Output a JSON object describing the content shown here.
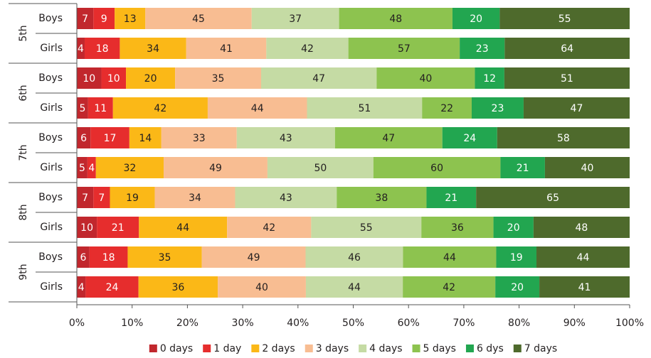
{
  "chart_data": {
    "type": "bar",
    "orientation": "horizontal",
    "stacked": true,
    "normalized": true,
    "groups": [
      "5th",
      "6th",
      "7th",
      "8th",
      "9th"
    ],
    "categories": [
      "Boys",
      "Girls",
      "Boys",
      "Girls",
      "Boys",
      "Girls",
      "Boys",
      "Girls",
      "Boys",
      "Girls"
    ],
    "series": [
      {
        "name": "0 days",
        "color": "#c1272d",
        "values": [
          7,
          4,
          10,
          5,
          6,
          5,
          7,
          10,
          6,
          4
        ]
      },
      {
        "name": "1 day",
        "color": "#e62d2d",
        "values": [
          9,
          18,
          10,
          11,
          17,
          4,
          7,
          21,
          18,
          24
        ]
      },
      {
        "name": "2 days",
        "color": "#fbb817",
        "values": [
          13,
          34,
          20,
          42,
          14,
          32,
          19,
          44,
          35,
          36
        ]
      },
      {
        "name": "3 days",
        "color": "#f8bd92",
        "values": [
          45,
          41,
          35,
          44,
          33,
          49,
          34,
          42,
          49,
          40
        ]
      },
      {
        "name": "4 days",
        "color": "#c5dba4",
        "values": [
          37,
          42,
          47,
          51,
          43,
          50,
          43,
          55,
          46,
          44
        ]
      },
      {
        "name": "5 days",
        "color": "#8dc34f",
        "values": [
          48,
          57,
          40,
          22,
          47,
          60,
          38,
          36,
          44,
          42
        ]
      },
      {
        "name": "6 dys",
        "color": "#22a650",
        "values": [
          20,
          23,
          12,
          23,
          24,
          21,
          21,
          20,
          19,
          20
        ]
      },
      {
        "name": "7 days",
        "color": "#4e6a2c",
        "values": [
          55,
          64,
          51,
          47,
          58,
          40,
          65,
          48,
          44,
          41
        ]
      }
    ],
    "xlim": [
      0,
      100
    ],
    "xticks": [
      {
        "value": 0,
        "label": "0%"
      },
      {
        "value": 10,
        "label": "10%"
      },
      {
        "value": 20,
        "label": "20%"
      },
      {
        "value": 30,
        "label": "30%"
      },
      {
        "value": 40,
        "label": "40%"
      },
      {
        "value": 50,
        "label": "50%"
      },
      {
        "value": 60,
        "label": "60%"
      },
      {
        "value": 70,
        "label": "70%"
      },
      {
        "value": 80,
        "label": "80%"
      },
      {
        "value": 90,
        "label": "90%"
      },
      {
        "value": 100,
        "label": "100%"
      }
    ],
    "legend": "bottom"
  }
}
